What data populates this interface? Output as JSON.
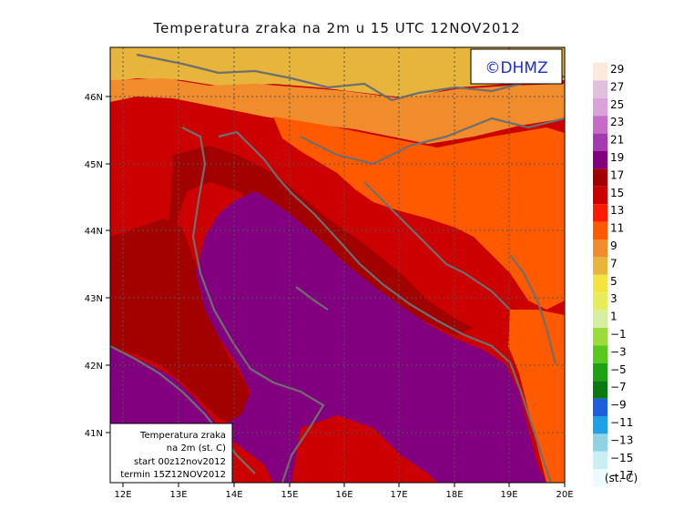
{
  "title": "Temperatura zraka na 2m u 15 UTC 12NOV2012",
  "logo": "©DHMZ",
  "info_box": {
    "line1": "Temperatura zraka",
    "line2": "na 2m (st. C)",
    "line3": "start 00z12nov2012",
    "line4": "termin 15Z12NOV2012"
  },
  "axes": {
    "lon_ticks": [
      "12E",
      "13E",
      "14E",
      "15E",
      "16E",
      "17E",
      "18E",
      "19E",
      "20E"
    ],
    "lat_ticks": [
      "46N",
      "45N",
      "44N",
      "43N",
      "42N",
      "41N"
    ]
  },
  "legend": {
    "unit": "(st. C)",
    "labels": [
      "29",
      "27",
      "25",
      "23",
      "21",
      "19",
      "17",
      "15",
      "13",
      "11",
      "9",
      "7",
      "5",
      "3",
      "1",
      "−1",
      "−3",
      "−5",
      "−7",
      "−9",
      "−11",
      "−13",
      "−15",
      "−17"
    ],
    "colors": [
      "#fbeadb",
      "#e0c0dc",
      "#d9a2d9",
      "#c76bc9",
      "#a43ab0",
      "#82007f",
      "#a30000",
      "#cc0000",
      "#ff1a00",
      "#ff5a00",
      "#f08c2c",
      "#e7b43c",
      "#f5e340",
      "#e8ec5a",
      "#d6eea0",
      "#9adc3a",
      "#58c81c",
      "#1ea014",
      "#0a7a10",
      "#1d5ee0",
      "#1ea0e6",
      "#8fd2e6",
      "#c9eef4",
      "#ecfbfd"
    ]
  },
  "colors": {
    "sea": "#82007f",
    "warm": "#cc0000",
    "dark_red": "#a30000",
    "orange": "#ff5a00",
    "light_orange": "#f08c2c",
    "yellow": "#e7b43c",
    "coast": "#6f6f6f"
  }
}
